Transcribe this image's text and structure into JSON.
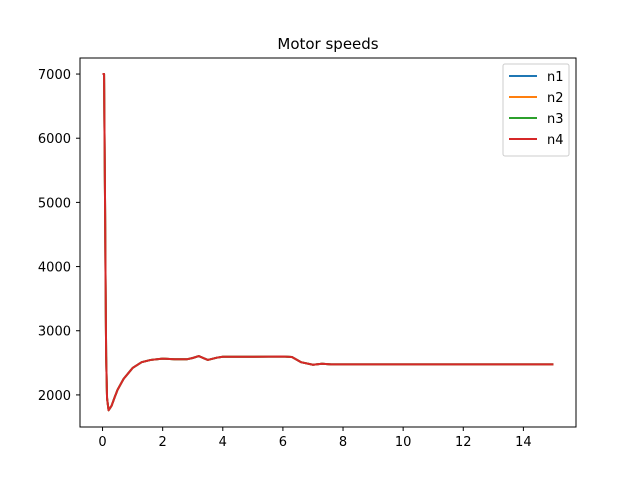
{
  "chart_data": {
    "type": "line",
    "title": "Motor speeds",
    "xlabel": "",
    "ylabel": "",
    "xlim": [
      -0.75,
      15.75
    ],
    "ylim": [
      1500,
      7250
    ],
    "xticks": [
      0,
      2,
      4,
      6,
      8,
      10,
      12,
      14
    ],
    "yticks": [
      2000,
      3000,
      4000,
      5000,
      6000,
      7000
    ],
    "grid": false,
    "legend_position": "top-right",
    "x": [
      0,
      0.05,
      0.08,
      0.1,
      0.12,
      0.15,
      0.2,
      0.3,
      0.4,
      0.5,
      0.7,
      1.0,
      1.3,
      1.6,
      2.0,
      2.4,
      2.8,
      3.0,
      3.2,
      3.5,
      3.8,
      4.0,
      5.0,
      6.0,
      6.3,
      6.6,
      7.0,
      7.3,
      7.6,
      8.0,
      10.0,
      12.0,
      14.0,
      15.0
    ],
    "series": [
      {
        "name": "n1",
        "color": "#1f77b4",
        "values": [
          7000,
          7000,
          5200,
          3800,
          2600,
          1950,
          1760,
          1830,
          1960,
          2080,
          2250,
          2420,
          2510,
          2545,
          2565,
          2555,
          2555,
          2575,
          2605,
          2545,
          2580,
          2595,
          2595,
          2598,
          2590,
          2510,
          2470,
          2485,
          2475,
          2475,
          2475,
          2475,
          2475,
          2475
        ]
      },
      {
        "name": "n2",
        "color": "#ff7f0e",
        "values": [
          7000,
          7000,
          5200,
          3800,
          2600,
          1950,
          1760,
          1830,
          1960,
          2080,
          2250,
          2420,
          2510,
          2545,
          2565,
          2555,
          2555,
          2575,
          2605,
          2545,
          2580,
          2595,
          2595,
          2598,
          2590,
          2510,
          2470,
          2485,
          2475,
          2475,
          2475,
          2475,
          2475,
          2475
        ]
      },
      {
        "name": "n3",
        "color": "#2ca02c",
        "values": [
          7000,
          7000,
          5200,
          3800,
          2600,
          1950,
          1760,
          1830,
          1960,
          2080,
          2250,
          2420,
          2510,
          2545,
          2565,
          2555,
          2555,
          2575,
          2605,
          2545,
          2580,
          2595,
          2595,
          2598,
          2590,
          2510,
          2470,
          2485,
          2475,
          2475,
          2475,
          2475,
          2475,
          2475
        ]
      },
      {
        "name": "n4",
        "color": "#d62728",
        "values": [
          7000,
          7000,
          5200,
          3800,
          2600,
          1950,
          1760,
          1830,
          1960,
          2080,
          2250,
          2420,
          2510,
          2545,
          2565,
          2555,
          2555,
          2575,
          2605,
          2545,
          2580,
          2595,
          2595,
          2598,
          2590,
          2510,
          2470,
          2485,
          2475,
          2475,
          2475,
          2475,
          2475,
          2475
        ]
      }
    ]
  }
}
